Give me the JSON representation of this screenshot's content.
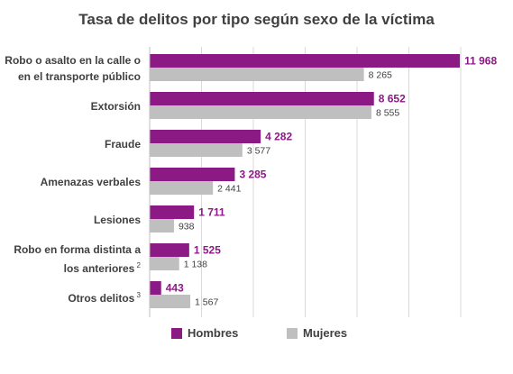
{
  "colors": {
    "hombres": "#8B1A85",
    "mujeres": "#BFBFBF",
    "gridline": "#D9D9D9",
    "text": "#404040"
  },
  "chart_data": {
    "type": "bar",
    "orientation": "horizontal",
    "title": "Tasa de delitos por tipo según sexo de la víctima",
    "categories": [
      {
        "line1": "Robo o asalto en la calle o",
        "line2": "en el transporte público",
        "sup": ""
      },
      {
        "line1": "Extorsión",
        "line2": "",
        "sup": ""
      },
      {
        "line1": "Fraude",
        "line2": "",
        "sup": ""
      },
      {
        "line1": "Amenazas verbales",
        "line2": "",
        "sup": ""
      },
      {
        "line1": "Lesiones",
        "line2": "",
        "sup": ""
      },
      {
        "line1": "Robo en forma distinta a",
        "line2": "los anteriores",
        "sup": "2"
      },
      {
        "line1": "Otros delitos",
        "line2": "",
        "sup": "3"
      }
    ],
    "series": [
      {
        "name": "Hombres",
        "values": [
          11968,
          8652,
          4282,
          3285,
          1711,
          1525,
          443
        ],
        "labels": [
          "11 968",
          "8 652",
          "4 282",
          "3 285",
          "1 711",
          "1 525",
          "443"
        ]
      },
      {
        "name": "Mujeres",
        "values": [
          8265,
          8555,
          3577,
          2441,
          938,
          1138,
          1567
        ],
        "labels": [
          "8 265",
          "8 555",
          "3 577",
          "2 441",
          "938",
          "1 138",
          "1 567"
        ]
      }
    ],
    "xlim": [
      0,
      12000
    ],
    "grid": true,
    "legend_position": "bottom"
  }
}
